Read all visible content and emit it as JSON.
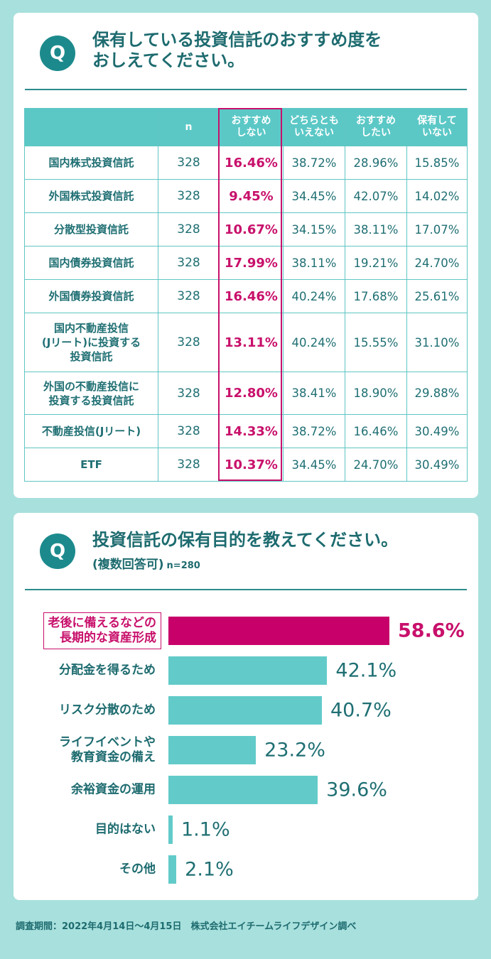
{
  "table_section": {
    "q": "Q",
    "title": "保有している投資信託のおすすめ度を\nおしえてください。"
  },
  "bar_section": {
    "q": "Q",
    "title": "投資信託の保有目的を教えてください。",
    "subtitle": "(複数回答可)",
    "n_label": "n=280"
  },
  "footer": "調査期間：2022年4月14日〜4月15日　株式会社エイチームライフデザイン調べ",
  "colors": {
    "teal": "#62cbc9",
    "header_teal": "#5bc8c6",
    "accent": "#c8106b",
    "bg": "#a8e0dd"
  },
  "chart_data": [
    {
      "type": "table",
      "columns": [
        "",
        "n",
        "おすすめ\nしない",
        "どちらとも\nいえない",
        "おすすめ\nしたい",
        "保有して\nいない"
      ],
      "rows": [
        [
          "国内株式投資信託",
          "328",
          "16.46%",
          "38.72%",
          "28.96%",
          "15.85%"
        ],
        [
          "外国株式投資信託",
          "328",
          "9.45%",
          "34.45%",
          "42.07%",
          "14.02%"
        ],
        [
          "分散型投資信託",
          "328",
          "10.67%",
          "34.15%",
          "38.11%",
          "17.07%"
        ],
        [
          "国内債券投資信託",
          "328",
          "17.99%",
          "38.11%",
          "19.21%",
          "24.70%"
        ],
        [
          "外国債券投資信託",
          "328",
          "16.46%",
          "40.24%",
          "17.68%",
          "25.61%"
        ],
        [
          "国内不動産投信\n(Jリート)に投資する\n投資信託",
          "328",
          "13.11%",
          "40.24%",
          "15.55%",
          "31.10%"
        ],
        [
          "外国の不動産投信に\n投資する投資信託",
          "328",
          "12.80%",
          "38.41%",
          "18.90%",
          "29.88%"
        ],
        [
          "不動産投信(Jリート)",
          "328",
          "14.33%",
          "38.72%",
          "16.46%",
          "30.49%"
        ],
        [
          "ETF",
          "328",
          "10.37%",
          "34.45%",
          "24.70%",
          "30.49%"
        ]
      ],
      "highlight_column": 2
    },
    {
      "type": "bar",
      "orientation": "horizontal",
      "categories": [
        "老後に備えるなどの\n長期的な資産形成",
        "分配金を得るため",
        "リスク分散のため",
        "ライフイベントや\n教育資金の備え",
        "余裕資金の運用",
        "目的はない",
        "その他"
      ],
      "values": [
        58.6,
        42.1,
        40.7,
        23.2,
        39.6,
        1.1,
        2.1
      ],
      "value_labels": [
        "58.6%",
        "42.1%",
        "40.7%",
        "23.2%",
        "39.6%",
        "1.1%",
        "2.1%"
      ],
      "highlight_index": 0,
      "xlim": [
        0,
        60
      ]
    }
  ]
}
